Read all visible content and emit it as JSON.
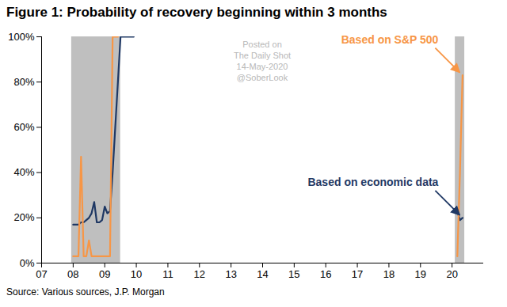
{
  "chart_data": {
    "type": "line",
    "title": "Figure 1: Probability of recovery beginning within 3 months",
    "source": "Source: Various sources, J.P. Morgan",
    "watermark": [
      "Posted on",
      "The Daily Shot",
      "14-May-2020",
      "@SoberLook"
    ],
    "x": [
      2008.0,
      2008.083,
      2008.167,
      2008.25,
      2008.333,
      2008.417,
      2008.5,
      2008.583,
      2008.667,
      2008.75,
      2008.833,
      2008.917,
      2009.0,
      2009.083,
      2009.167,
      2009.25,
      2009.333,
      2009.417,
      2009.5,
      2009.583,
      2009.667,
      2009.75,
      2009.833,
      2009.917,
      2010.0,
      2020.167,
      2020.25,
      2020.333
    ],
    "series": [
      {
        "name": "Based on economic data",
        "color": "#1f3864",
        "values": [
          17,
          17,
          17,
          18,
          18,
          19,
          20,
          22,
          27,
          18,
          18,
          19,
          25,
          22,
          23,
          40,
          60,
          80,
          100,
          100,
          100,
          100,
          100,
          100,
          null,
          23,
          19,
          20
        ]
      },
      {
        "name": "Based on S&P 500",
        "color": "#f79646",
        "values": [
          3,
          3,
          3,
          47,
          3,
          3,
          10,
          3,
          3,
          3,
          3,
          3,
          3,
          3,
          3,
          100,
          100,
          100,
          null,
          null,
          null,
          null,
          null,
          null,
          null,
          3,
          40,
          83
        ]
      }
    ],
    "shaded_ranges": [
      [
        2007.95,
        2009.5
      ],
      [
        2020.1,
        2020.4
      ]
    ],
    "xlim": [
      2007,
      2021
    ],
    "xticks": [
      {
        "value": 2007,
        "label": "07"
      },
      {
        "value": 2008,
        "label": "08"
      },
      {
        "value": 2009,
        "label": "09"
      },
      {
        "value": 2010,
        "label": "10"
      },
      {
        "value": 2011,
        "label": "11"
      },
      {
        "value": 2012,
        "label": "12"
      },
      {
        "value": 2013,
        "label": "13"
      },
      {
        "value": 2014,
        "label": "14"
      },
      {
        "value": 2015,
        "label": "15"
      },
      {
        "value": 2016,
        "label": "16"
      },
      {
        "value": 2017,
        "label": "17"
      },
      {
        "value": 2018,
        "label": "18"
      },
      {
        "value": 2019,
        "label": "19"
      },
      {
        "value": 2020,
        "label": "20"
      }
    ],
    "ylim": [
      0,
      100
    ],
    "yticks": [
      {
        "value": 0,
        "label": "0%"
      },
      {
        "value": 20,
        "label": "20%"
      },
      {
        "value": 40,
        "label": "40%"
      },
      {
        "value": 60,
        "label": "60%"
      },
      {
        "value": 80,
        "label": "80%"
      },
      {
        "value": 100,
        "label": "100%"
      }
    ],
    "grid": false
  }
}
